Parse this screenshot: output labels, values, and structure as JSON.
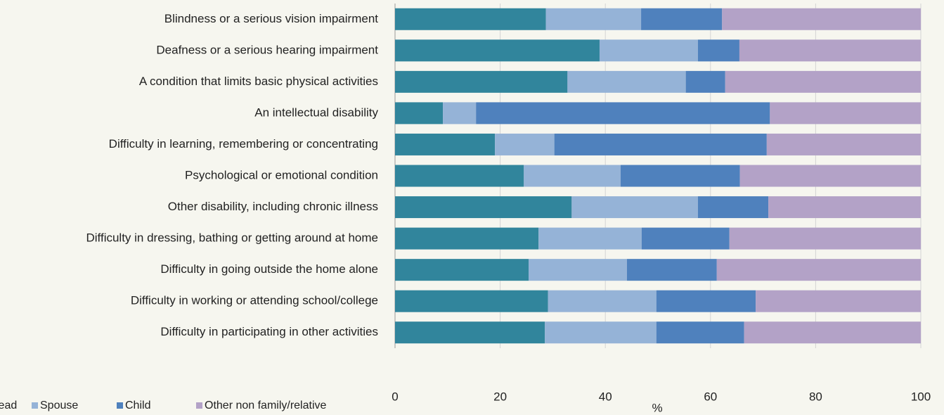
{
  "chart_data": {
    "type": "stacked_bar_horizontal",
    "x_label": "%",
    "categories": [
      "Blindness or a serious vision impairment",
      "Deafness or a serious hearing impairment",
      "A condition that limits basic physical activities",
      "An intellectual disability",
      "Difficulty in learning, remembering or concentrating",
      "Psychological or emotional condition",
      "Other disability, including chronic illness",
      "Difficulty in dressing, bathing or getting around at  home",
      "Difficulty in going outside the home alone",
      "Difficulty in working or attending school/college",
      "Difficulty in participating in other activities"
    ],
    "series": [
      {
        "name": "Head",
        "color": "#31859c",
        "values": [
          28.7,
          38.9,
          32.8,
          9.1,
          19.0,
          24.5,
          33.6,
          27.3,
          25.4,
          29.1,
          28.5
        ]
      },
      {
        "name": "Spouse",
        "color": "#95b3d7",
        "values": [
          18.1,
          18.7,
          22.5,
          6.3,
          11.3,
          18.4,
          24.0,
          19.6,
          18.7,
          20.6,
          21.2
        ]
      },
      {
        "name": "Child",
        "color": "#4f81bd",
        "values": [
          15.4,
          7.9,
          7.5,
          55.9,
          40.4,
          22.7,
          13.4,
          16.7,
          17.1,
          18.9,
          16.7
        ]
      },
      {
        "name": "Other non family/relative",
        "color": "#b3a2c7",
        "values": [
          37.8,
          34.5,
          37.2,
          28.7,
          29.3,
          34.4,
          29.0,
          36.4,
          38.8,
          31.4,
          33.6
        ]
      }
    ],
    "xlim": [
      0,
      100
    ],
    "xticks": [
      0,
      20,
      40,
      60,
      80,
      100
    ],
    "grid": true,
    "legend": "bottom"
  }
}
